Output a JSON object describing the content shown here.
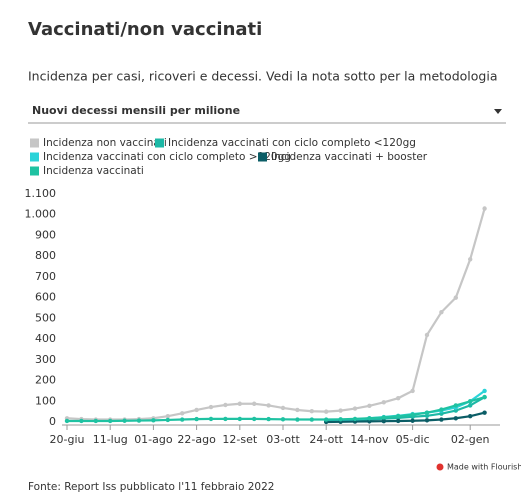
{
  "header": {
    "title": "Vaccinati/non vaccinati",
    "subtitle": "Incidenza per casi, ricoveri e decessi. Vedi la nota sotto per la metodologia"
  },
  "dropdown": {
    "label": "Nuovi decessi mensili per milione"
  },
  "chart_data": {
    "type": "line",
    "categories": [
      "20-giu",
      null,
      null,
      "11-lug",
      null,
      null,
      "01-ago",
      null,
      null,
      "22-ago",
      null,
      null,
      "12-set",
      null,
      null,
      "03-ott",
      null,
      null,
      "24-ott",
      null,
      null,
      "14-nov",
      null,
      null,
      "05-dic",
      null,
      null,
      null,
      "02-gen",
      null
    ],
    "series": [
      {
        "name": "Incidenza non vaccinati",
        "color": "#c6c6c6",
        "values": [
          18,
          14,
          12,
          12,
          12,
          14,
          18,
          28,
          42,
          58,
          72,
          82,
          88,
          88,
          80,
          68,
          58,
          52,
          50,
          55,
          65,
          78,
          95,
          115,
          150,
          420,
          530,
          600,
          785,
          1030
        ]
      },
      {
        "name": "Incidenza vaccinati con ciclo completo <120gg",
        "color": "#1db8a6",
        "values": [
          null,
          null,
          null,
          null,
          null,
          null,
          null,
          null,
          null,
          null,
          null,
          null,
          null,
          null,
          null,
          null,
          null,
          null,
          3,
          5,
          8,
          12,
          16,
          20,
          25,
          30,
          40,
          55,
          80,
          120
        ]
      },
      {
        "name": "Incidenza vaccinati con ciclo completo >120gg",
        "color": "#2bd3d8",
        "values": [
          null,
          null,
          null,
          null,
          null,
          null,
          null,
          null,
          null,
          null,
          null,
          null,
          null,
          null,
          null,
          null,
          null,
          null,
          4,
          8,
          12,
          18,
          24,
          30,
          38,
          45,
          55,
          70,
          100,
          150
        ]
      },
      {
        "name": "Incidenza vaccinati + booster",
        "color": "#0b5d66",
        "values": [
          null,
          null,
          null,
          null,
          null,
          null,
          null,
          null,
          null,
          null,
          null,
          null,
          null,
          null,
          null,
          null,
          null,
          null,
          0,
          1,
          2,
          3,
          4,
          5,
          6,
          8,
          12,
          18,
          28,
          45
        ]
      },
      {
        "name": "Incidenza vaccinati",
        "color": "#1fc2a2",
        "values": [
          5,
          5,
          5,
          5,
          6,
          7,
          8,
          10,
          12,
          14,
          15,
          15,
          15,
          15,
          14,
          13,
          12,
          12,
          12,
          13,
          15,
          18,
          22,
          28,
          35,
          45,
          60,
          80,
          100,
          120
        ]
      }
    ],
    "ylim": [
      0,
      1100
    ],
    "yticks": [
      0,
      100,
      200,
      300,
      400,
      500,
      600,
      700,
      800,
      900,
      {
        "value": 1000,
        "label": "1.000"
      },
      {
        "value": 1100,
        "label": "1.100"
      }
    ],
    "grid": false
  },
  "footer": {
    "source": "Fonte: Report Iss pubblicato l'11 febbraio 2022",
    "credit": "Made with Flourish"
  }
}
